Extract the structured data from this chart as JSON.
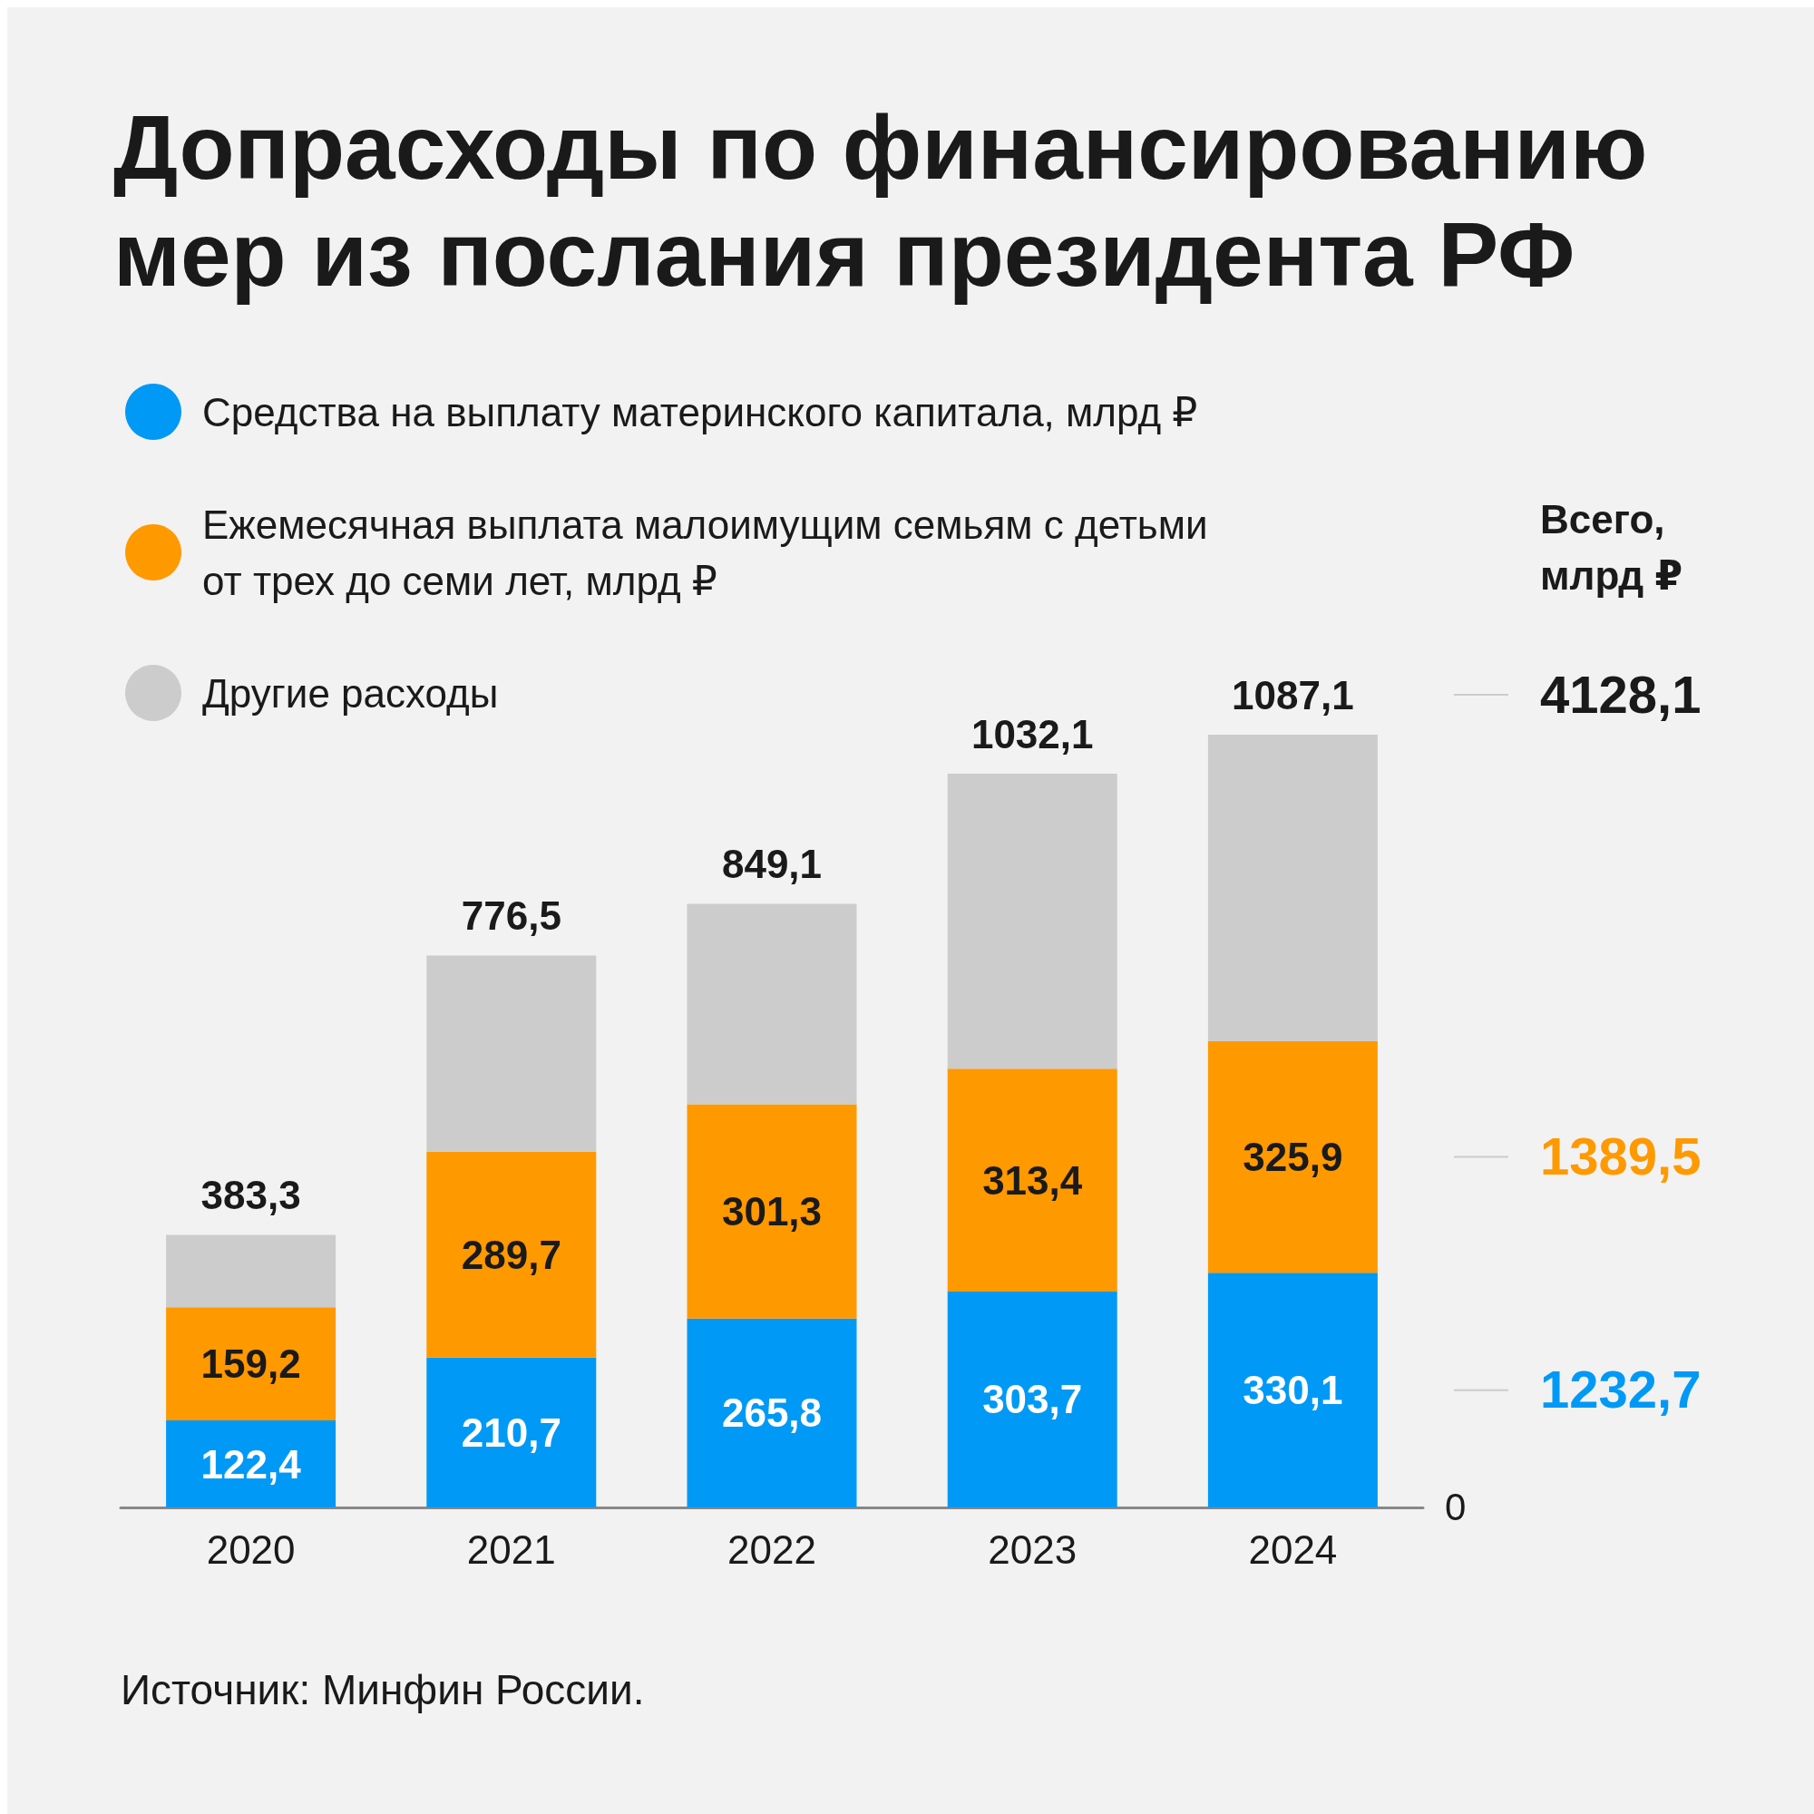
{
  "chart_data": {
    "type": "bar",
    "title": "Допрасходы по финансированию мер из послания президента РФ",
    "stacked": true,
    "categories": [
      "2020",
      "2021",
      "2022",
      "2023",
      "2024"
    ],
    "series": [
      {
        "name": "Средства на выплату материнского капитала, млрд ₽",
        "color": "#0099f5",
        "values": [
          122.4,
          210.7,
          265.8,
          303.7,
          330.1
        ],
        "value_labels": [
          "122,4",
          "210,7",
          "265,8",
          "303,7",
          "330,1"
        ]
      },
      {
        "name": "Ежемесячная выплата малоимущим семьям с детьми от трех до семи лет, млрд ₽",
        "color": "#ff9900",
        "values": [
          159.2,
          289.7,
          301.3,
          313.4,
          325.9
        ],
        "value_labels": [
          "159,2",
          "289,7",
          "301,3",
          "313,4",
          "325,9"
        ]
      },
      {
        "name": "Другие расходы",
        "color": "#cccccc",
        "values": [
          101.7,
          276.1,
          282.0,
          415.0,
          431.1
        ]
      }
    ],
    "totals": [
      "383,3",
      "776,5",
      "849,1",
      "1032,1",
      "1087,1"
    ],
    "legend": "top left",
    "grid": false,
    "annotations": [
      "Всего, млрд ₽",
      "4128,1",
      "1389,5",
      "1232,7",
      "0",
      "Источник: Минфин России."
    ]
  }
}
